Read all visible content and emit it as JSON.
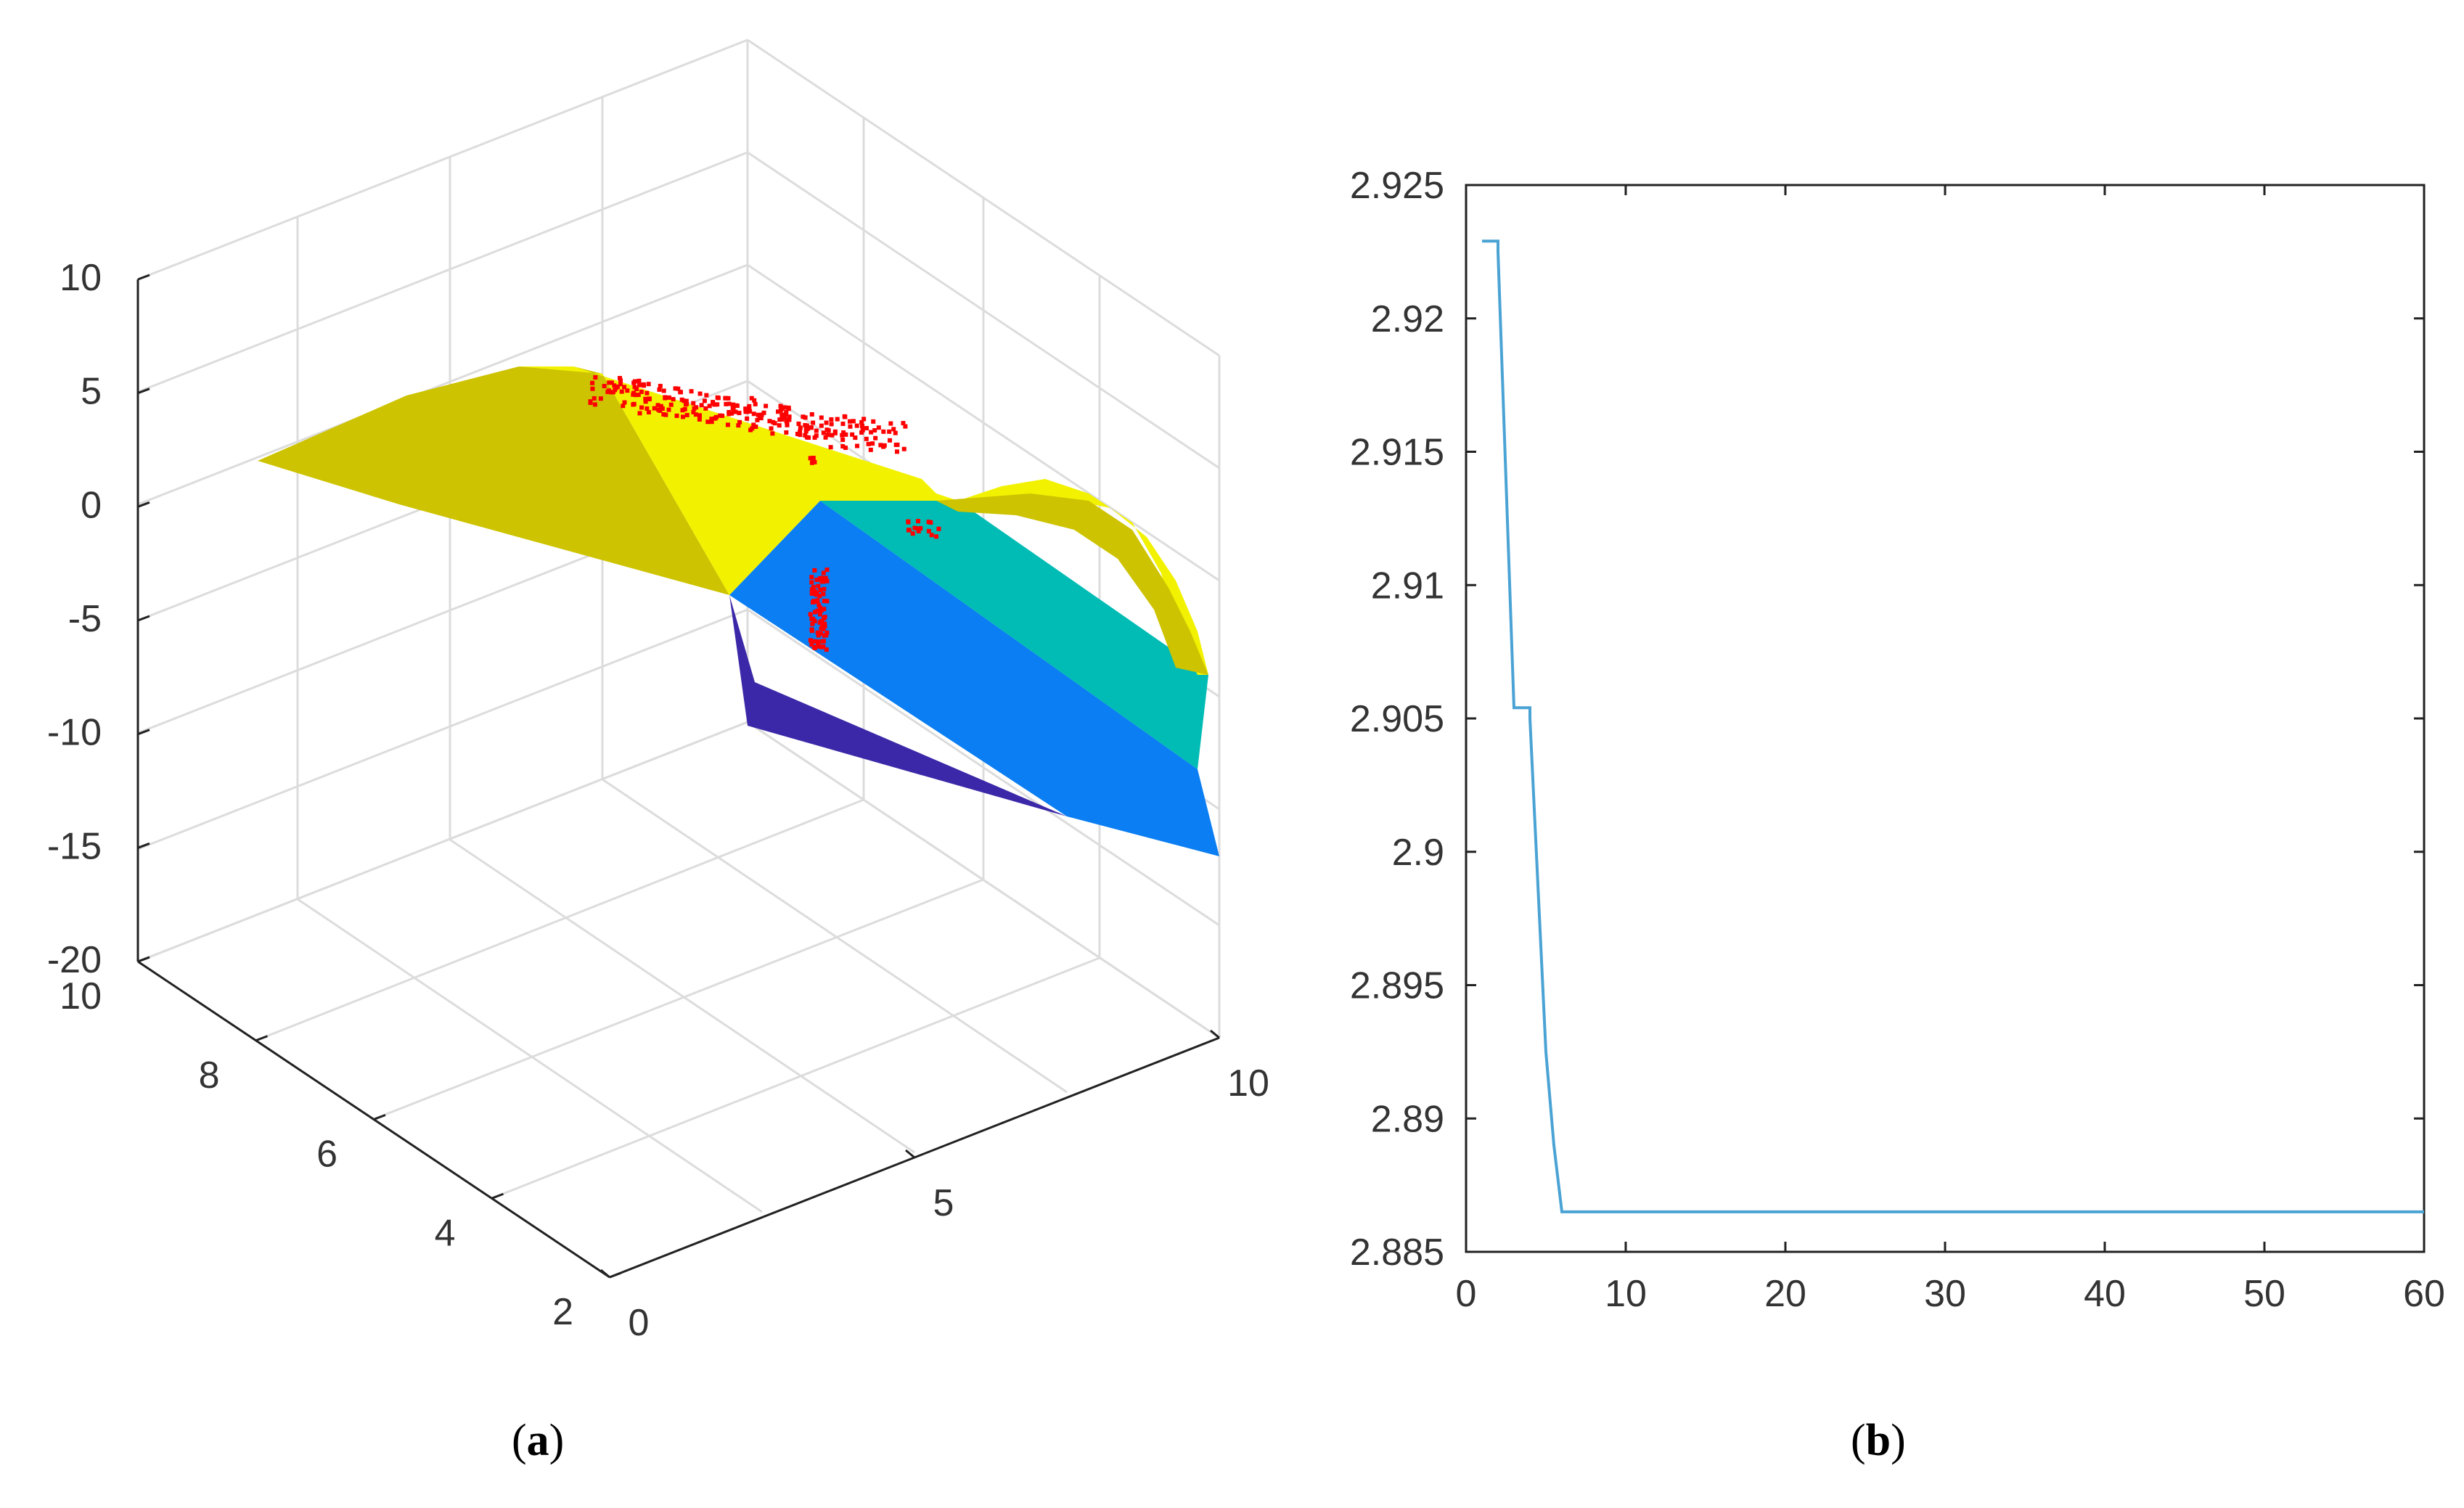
{
  "figure": {
    "panels": [
      {
        "id": "a",
        "prefix": "(",
        "letter": "a",
        "suffix": ")"
      },
      {
        "id": "b",
        "prefix": "(",
        "letter": "b",
        "suffix": ")"
      }
    ]
  },
  "chart_data": [
    {
      "type": "surface3d",
      "panel": "a",
      "z_ticks": [
        "10",
        "5",
        "0",
        "-5",
        "-10",
        "-15",
        "-20"
      ],
      "y_ticks": [
        "10",
        "8",
        "6",
        "4",
        "2"
      ],
      "x_ticks": [
        "0",
        "5",
        "10"
      ],
      "zlim": [
        -20,
        10
      ],
      "ylim": [
        2,
        10
      ],
      "xlim": [
        0,
        10
      ],
      "grid": true,
      "surface_colors": {
        "top": "#f2f200",
        "top_shaded": "#cdc300",
        "cyan": "#00bcb4",
        "blue": "#0a7ef2",
        "indigo": "#3a28a8"
      },
      "scatter_color": "#ff0000"
    },
    {
      "type": "line",
      "panel": "b",
      "x_ticks": [
        "0",
        "10",
        "20",
        "30",
        "40",
        "50",
        "60"
      ],
      "y_ticks": [
        "2.925",
        "2.92",
        "2.915",
        "2.91",
        "2.905",
        "2.9",
        "2.895",
        "2.89",
        "2.885"
      ],
      "xlim": [
        0,
        60
      ],
      "ylim": [
        2.885,
        2.925
      ],
      "grid": false,
      "line_color": "#4aa3d4",
      "x": [
        1,
        2,
        2,
        3,
        3,
        4,
        4,
        5,
        5.5,
        6,
        60
      ],
      "y": [
        2.9229,
        2.9229,
        2.9225,
        2.9054,
        2.9054,
        2.9054,
        2.905,
        2.8925,
        2.889,
        2.8865,
        2.8865
      ]
    }
  ]
}
